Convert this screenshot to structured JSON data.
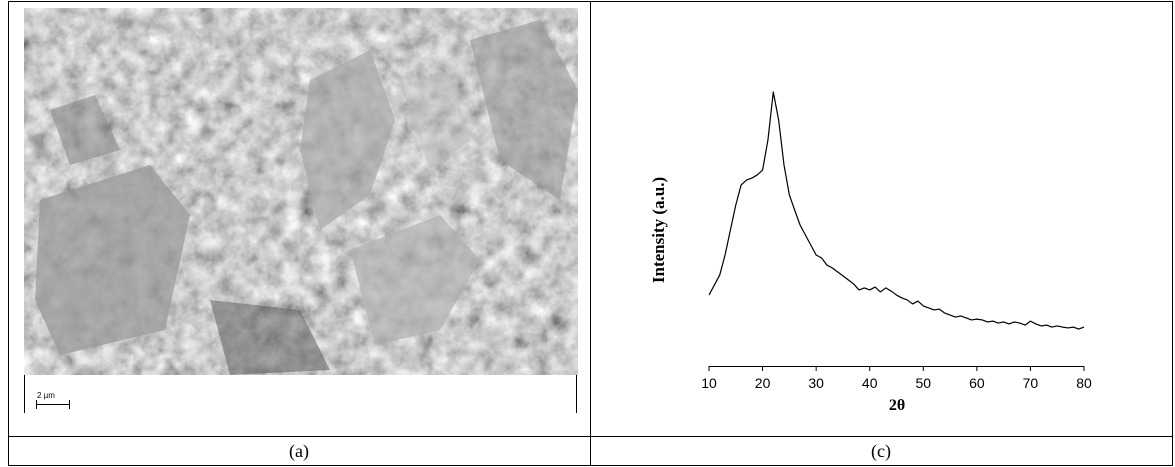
{
  "table": {
    "captions": [
      "(a)",
      "(c)"
    ],
    "scale_bar": "2 µm"
  },
  "chart_data": {
    "type": "line",
    "y_label": "Intensity (a.u.)",
    "x_label": "2θ",
    "x": [
      10,
      11,
      12,
      13,
      14,
      15,
      16,
      17,
      18,
      19,
      20,
      21,
      22,
      23,
      24,
      25,
      26,
      27,
      28,
      29,
      30,
      31,
      32,
      33,
      34,
      35,
      36,
      37,
      38,
      39,
      40,
      41,
      42,
      43,
      44,
      45,
      46,
      47,
      48,
      49,
      50,
      51,
      52,
      53,
      54,
      55,
      56,
      57,
      58,
      59,
      60,
      61,
      62,
      63,
      64,
      65,
      66,
      67,
      68,
      69,
      70,
      71,
      72,
      73,
      74,
      75,
      76,
      77,
      78,
      79,
      80
    ],
    "values": [
      24.8,
      28.3,
      31.8,
      38.8,
      47.6,
      56.3,
      63.3,
      65.0,
      65.7,
      66.8,
      68.5,
      79.0,
      95.8,
      86.0,
      70.3,
      59.8,
      54.5,
      49.3,
      45.8,
      42.3,
      38.8,
      37.8,
      35.3,
      34.3,
      32.9,
      31.5,
      30.1,
      28.7,
      26.6,
      27.3,
      26.6,
      27.6,
      25.9,
      27.3,
      26.2,
      24.8,
      23.8,
      23.1,
      21.7,
      22.7,
      21.0,
      20.3,
      19.6,
      19.9,
      18.5,
      17.8,
      17.1,
      17.5,
      16.8,
      16.1,
      16.4,
      16.1,
      15.4,
      15.7,
      15.0,
      15.4,
      14.7,
      15.4,
      15.0,
      14.3,
      15.7,
      14.7,
      14.0,
      14.3,
      13.6,
      14.0,
      13.6,
      13.3,
      13.6,
      12.9,
      13.6
    ],
    "color": "#000000",
    "xlim": [
      10,
      80
    ],
    "xticks": [
      10,
      20,
      30,
      40,
      50,
      60,
      70,
      80
    ],
    "ylim": [
      0,
      100
    ]
  }
}
